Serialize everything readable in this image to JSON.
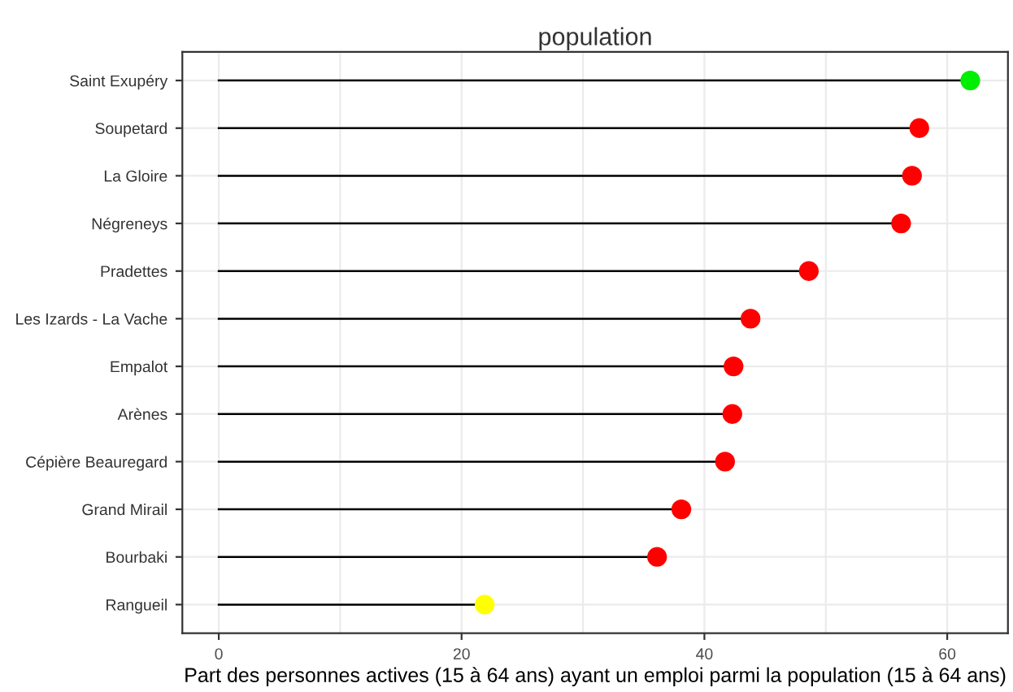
{
  "chart_data": {
    "type": "lollipop",
    "orientation": "horizontal",
    "title": "population",
    "xlabel": "Part des personnes actives (15 à 64 ans) ayant un emploi parmi la population (15 à 64 ans)",
    "categories": [
      "Saint Exupéry",
      "Soupetard",
      "La Gloire",
      "Négreneys",
      "Pradettes",
      "Les Izards - La Vache",
      "Empalot",
      "Arènes",
      "Cépière Beauregard",
      "Grand Mirail",
      "Bourbaki",
      "Rangueil"
    ],
    "values": [
      61.9,
      57.7,
      57.1,
      56.2,
      48.6,
      43.8,
      42.4,
      42.3,
      41.7,
      38.1,
      36.1,
      21.9
    ],
    "colors": [
      "#00ee00",
      "#ff0000",
      "#ff0000",
      "#ff0000",
      "#ff0000",
      "#ff0000",
      "#ff0000",
      "#ff0000",
      "#ff0000",
      "#ff0000",
      "#ff0000",
      "#ffff00"
    ],
    "xlim": [
      -3,
      65
    ],
    "xticks": [
      0,
      {
        "value": 10,
        "label": null
      },
      20,
      {
        "value": 30,
        "label": null
      },
      40,
      {
        "value": 50,
        "label": null
      },
      60
    ],
    "grid": true,
    "marker": "circle",
    "legend": false
  }
}
